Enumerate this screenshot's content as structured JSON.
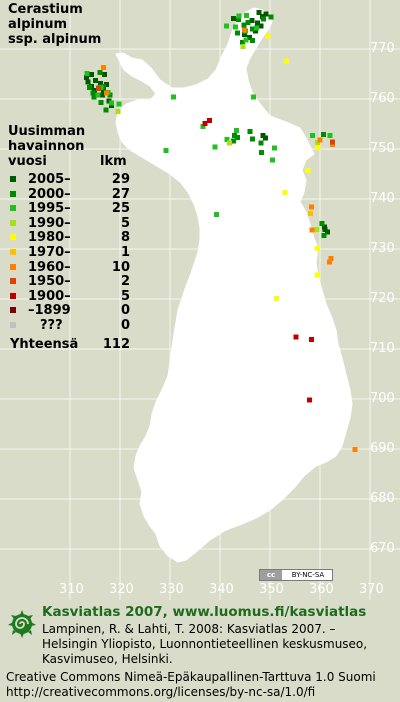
{
  "species": {
    "line1": "Cerastium",
    "line2": "alpinum",
    "line3": "ssp. alpinum"
  },
  "legend": {
    "title_line1": "Uusimman",
    "title_line2": "havainnon",
    "title_line3": "vuosi",
    "count_header": "lkm",
    "items": [
      {
        "label": "2005–",
        "count": "29",
        "color": "#005a00"
      },
      {
        "label": "2000–",
        "count": "27",
        "color": "#008c00"
      },
      {
        "label": "1995–",
        "count": "25",
        "color": "#20c020"
      },
      {
        "label": "1990–",
        "count": "5",
        "color": "#a8e020"
      },
      {
        "label": "1980–",
        "count": "8",
        "color": "#ffff00"
      },
      {
        "label": "1970–",
        "count": "1",
        "color": "#ffc000"
      },
      {
        "label": "1960–",
        "count": "10",
        "color": "#ff8000"
      },
      {
        "label": "1950–",
        "count": "2",
        "color": "#e04000"
      },
      {
        "label": "1900–",
        "count": "5",
        "color": "#c00000"
      },
      {
        "label": "–1899",
        "count": "0",
        "color": "#800000"
      },
      {
        "label": "???",
        "count": "0",
        "color": "#c0c0c0"
      }
    ],
    "total_label": "Yhteensä",
    "total_count": "112"
  },
  "grid": {
    "y_labels": [
      "770",
      "760",
      "750",
      "740",
      "730",
      "720",
      "710",
      "700",
      "690",
      "680",
      "670"
    ],
    "x_labels": [
      "310",
      "320",
      "330",
      "340",
      "350",
      "360",
      "370"
    ]
  },
  "badge": {
    "left": "cc",
    "right": "BY-NC-SA"
  },
  "footer": {
    "atlas_title": "Kasviatlas 2007, www.luomus.fi/kasviatlas",
    "citation_line1": "Lampinen, R. & Lahti, T. 2008: Kasviatlas 2007. –",
    "citation_line2": "Helsingin Yliopisto, Luonnontieteellinen keskusmuseo,",
    "citation_line3": "Kasvimuseo, Helsinki.",
    "license_line1": "Creative Commons Nimeä-Epäkaupallinen-Tarttuva 1.0 Suomi",
    "license_line2": "http://creativecommons.org/licenses/by-nc-sa/1.0/fi"
  },
  "colors": {
    "background": "#d9dcc9",
    "land": "#ffffff",
    "title_green": "#1e6b1e"
  },
  "observations": [
    {
      "e": 313.4,
      "n": 764.2,
      "period": "2005–"
    },
    {
      "e": 314.4,
      "n": 764.8,
      "period": "2005–"
    },
    {
      "e": 313.7,
      "n": 763.3,
      "period": "2005–"
    },
    {
      "e": 315.2,
      "n": 763.6,
      "period": "2005–"
    },
    {
      "e": 315.9,
      "n": 762.1,
      "period": "2005–"
    },
    {
      "e": 315.0,
      "n": 761.6,
      "period": "2005–"
    },
    {
      "e": 316.8,
      "n": 761.6,
      "period": "2005–"
    },
    {
      "e": 317.4,
      "n": 762.8,
      "period": "2005–"
    },
    {
      "e": 316.6,
      "n": 760.7,
      "period": "2005–"
    },
    {
      "e": 317.9,
      "n": 759.5,
      "period": "2005–"
    },
    {
      "e": 314.4,
      "n": 762.4,
      "period": "2005–"
    },
    {
      "e": 317.0,
      "n": 764.8,
      "period": "2005–"
    },
    {
      "e": 318.4,
      "n": 758.6,
      "period": "2005–"
    },
    {
      "e": 316.2,
      "n": 763.0,
      "period": "2005–"
    },
    {
      "e": 342.8,
      "n": 776.0,
      "period": "2005–"
    },
    {
      "e": 347.9,
      "n": 777.2,
      "period": "2005–"
    },
    {
      "e": 348.6,
      "n": 776.4,
      "period": "2005–"
    },
    {
      "e": 349.3,
      "n": 776.9,
      "period": "2005–"
    },
    {
      "e": 346.5,
      "n": 775.6,
      "period": "2005–"
    },
    {
      "e": 347.6,
      "n": 775.1,
      "period": "2005–"
    },
    {
      "e": 348.3,
      "n": 774.5,
      "period": "2005–"
    },
    {
      "e": 346.0,
      "n": 772.2,
      "period": "2005–"
    },
    {
      "e": 345.0,
      "n": 772.8,
      "period": "2005–"
    },
    {
      "e": 347.2,
      "n": 773.5,
      "period": "2005–"
    },
    {
      "e": 349.2,
      "n": 752.1,
      "period": "2005–"
    },
    {
      "e": 348.7,
      "n": 752.6,
      "period": "2005–"
    },
    {
      "e": 361.0,
      "n": 734.3,
      "period": "2005–"
    },
    {
      "e": 361.1,
      "n": 733.8,
      "period": "2005–"
    },
    {
      "e": 361.6,
      "n": 733.3,
      "period": "2005–"
    },
    {
      "e": 314.0,
      "n": 762.2,
      "period": "2000–"
    },
    {
      "e": 314.7,
      "n": 761.1,
      "period": "2000–"
    },
    {
      "e": 316.8,
      "n": 762.4,
      "period": "2000–"
    },
    {
      "e": 316.3,
      "n": 759.2,
      "period": "2000–"
    },
    {
      "e": 317.3,
      "n": 757.7,
      "period": "2000–"
    },
    {
      "e": 316.1,
      "n": 765.2,
      "period": "2000–"
    },
    {
      "e": 314.9,
      "n": 760.3,
      "period": "2000–"
    },
    {
      "e": 318.1,
      "n": 760.7,
      "period": "2000–"
    },
    {
      "e": 344.9,
      "n": 774.7,
      "period": "2000–"
    },
    {
      "e": 346.6,
      "n": 773.9,
      "period": "2000–"
    },
    {
      "e": 345.7,
      "n": 775.2,
      "period": "2000–"
    },
    {
      "e": 348.8,
      "n": 775.9,
      "period": "2000–"
    },
    {
      "e": 343.6,
      "n": 773.1,
      "period": "2000–"
    },
    {
      "e": 350.3,
      "n": 776.3,
      "period": "2000–"
    },
    {
      "e": 346.6,
      "n": 771.6,
      "period": "2000–"
    },
    {
      "e": 344.6,
      "n": 771.2,
      "period": "2000–"
    },
    {
      "e": 343.0,
      "n": 752.6,
      "period": "2000–"
    },
    {
      "e": 346.1,
      "n": 753.4,
      "period": "2000–"
    },
    {
      "e": 343.6,
      "n": 752.2,
      "period": "2000–"
    },
    {
      "e": 348.3,
      "n": 751.1,
      "period": "2000–"
    },
    {
      "e": 342.8,
      "n": 751.5,
      "period": "2000–"
    },
    {
      "e": 346.6,
      "n": 751.9,
      "period": "2000–"
    },
    {
      "e": 348.4,
      "n": 749.2,
      "period": "2000–"
    },
    {
      "e": 360.5,
      "n": 735.0,
      "period": "2000–"
    },
    {
      "e": 360.9,
      "n": 732.6,
      "period": "2000–"
    },
    {
      "e": 360.8,
      "n": 752.8,
      "period": "2000–"
    },
    {
      "e": 343.8,
      "n": 775.8,
      "period": "2000–"
    },
    {
      "e": 316.3,
      "n": 762.2,
      "period": "1995–"
    },
    {
      "e": 317.7,
      "n": 761.2,
      "period": "1995–"
    },
    {
      "e": 319.9,
      "n": 758.9,
      "period": "1995–"
    },
    {
      "e": 318.4,
      "n": 759.1,
      "period": "1995–"
    },
    {
      "e": 313.5,
      "n": 765.0,
      "period": "1995–"
    },
    {
      "e": 315.7,
      "n": 760.7,
      "period": "1995–"
    },
    {
      "e": 343.9,
      "n": 776.5,
      "period": "1995–"
    },
    {
      "e": 345.2,
      "n": 773.5,
      "period": "1995–"
    },
    {
      "e": 343.2,
      "n": 774.3,
      "period": "1995–"
    },
    {
      "e": 345.3,
      "n": 771.7,
      "period": "1995–"
    },
    {
      "e": 341.4,
      "n": 774.5,
      "period": "1995–"
    },
    {
      "e": 345.4,
      "n": 776.6,
      "period": "1995–"
    },
    {
      "e": 347.4,
      "n": 774.1,
      "period": "1995–"
    },
    {
      "e": 330.8,
      "n": 760.3,
      "period": "1995–"
    },
    {
      "e": 346.8,
      "n": 760.3,
      "period": "1995–"
    },
    {
      "e": 336.7,
      "n": 754.4,
      "period": "1995–"
    },
    {
      "e": 341.5,
      "n": 751.8,
      "period": "1995–"
    },
    {
      "e": 343.4,
      "n": 753.6,
      "period": "1995–"
    },
    {
      "e": 339.1,
      "n": 750.3,
      "period": "1995–"
    },
    {
      "e": 329.3,
      "n": 749.6,
      "period": "1995–"
    },
    {
      "e": 351.0,
      "n": 750.1,
      "period": "1995–"
    },
    {
      "e": 350.6,
      "n": 747.7,
      "period": "1995–"
    },
    {
      "e": 358.6,
      "n": 752.6,
      "period": "1995–"
    },
    {
      "e": 362.1,
      "n": 752.6,
      "period": "1995–"
    },
    {
      "e": 339.4,
      "n": 736.8,
      "period": "1995–"
    },
    {
      "e": 319.7,
      "n": 757.4,
      "period": "1990–"
    },
    {
      "e": 344.7,
      "n": 770.4,
      "period": "1990–"
    },
    {
      "e": 342.0,
      "n": 751.1,
      "period": "1990–"
    },
    {
      "e": 359.6,
      "n": 751.2,
      "period": "1990–"
    },
    {
      "e": 359.5,
      "n": 733.8,
      "period": "1990–"
    },
    {
      "e": 349.7,
      "n": 772.5,
      "period": "1980–"
    },
    {
      "e": 353.4,
      "n": 767.5,
      "period": "1980–"
    },
    {
      "e": 359.7,
      "n": 750.2,
      "period": "1980–"
    },
    {
      "e": 357.7,
      "n": 745.6,
      "period": "1980–"
    },
    {
      "e": 353.1,
      "n": 741.2,
      "period": "1980–"
    },
    {
      "e": 359.6,
      "n": 730.0,
      "period": "1980–"
    },
    {
      "e": 359.6,
      "n": 724.7,
      "period": "1980–"
    },
    {
      "e": 351.4,
      "n": 720.0,
      "period": "1980–"
    },
    {
      "e": 358.2,
      "n": 737.0,
      "period": "1970–"
    },
    {
      "e": 316.8,
      "n": 766.2,
      "period": "1960–"
    },
    {
      "e": 317.4,
      "n": 761.1,
      "period": "1960–"
    },
    {
      "e": 360.1,
      "n": 751.7,
      "period": "1960–"
    },
    {
      "e": 358.4,
      "n": 738.3,
      "period": "1960–"
    },
    {
      "e": 358.5,
      "n": 733.7,
      "period": "1960–"
    },
    {
      "e": 362.3,
      "n": 728.0,
      "period": "1960–"
    },
    {
      "e": 367.1,
      "n": 689.8,
      "period": "1960–"
    },
    {
      "e": 345.0,
      "n": 773.7,
      "period": "1960–"
    },
    {
      "e": 362.6,
      "n": 750.8,
      "period": "1960–"
    },
    {
      "e": 362.0,
      "n": 727.3,
      "period": "1960–"
    },
    {
      "e": 362.6,
      "n": 751.3,
      "period": "1950–"
    },
    {
      "e": 315.8,
      "n": 762.0,
      "period": "1950–"
    },
    {
      "e": 337.1,
      "n": 755.0,
      "period": "1900–"
    },
    {
      "e": 338.0,
      "n": 755.6,
      "period": "1900–"
    },
    {
      "e": 355.3,
      "n": 712.3,
      "period": "1900–"
    },
    {
      "e": 358.4,
      "n": 711.8,
      "period": "1900–"
    },
    {
      "e": 358.0,
      "n": 699.7,
      "period": "1900–"
    }
  ]
}
